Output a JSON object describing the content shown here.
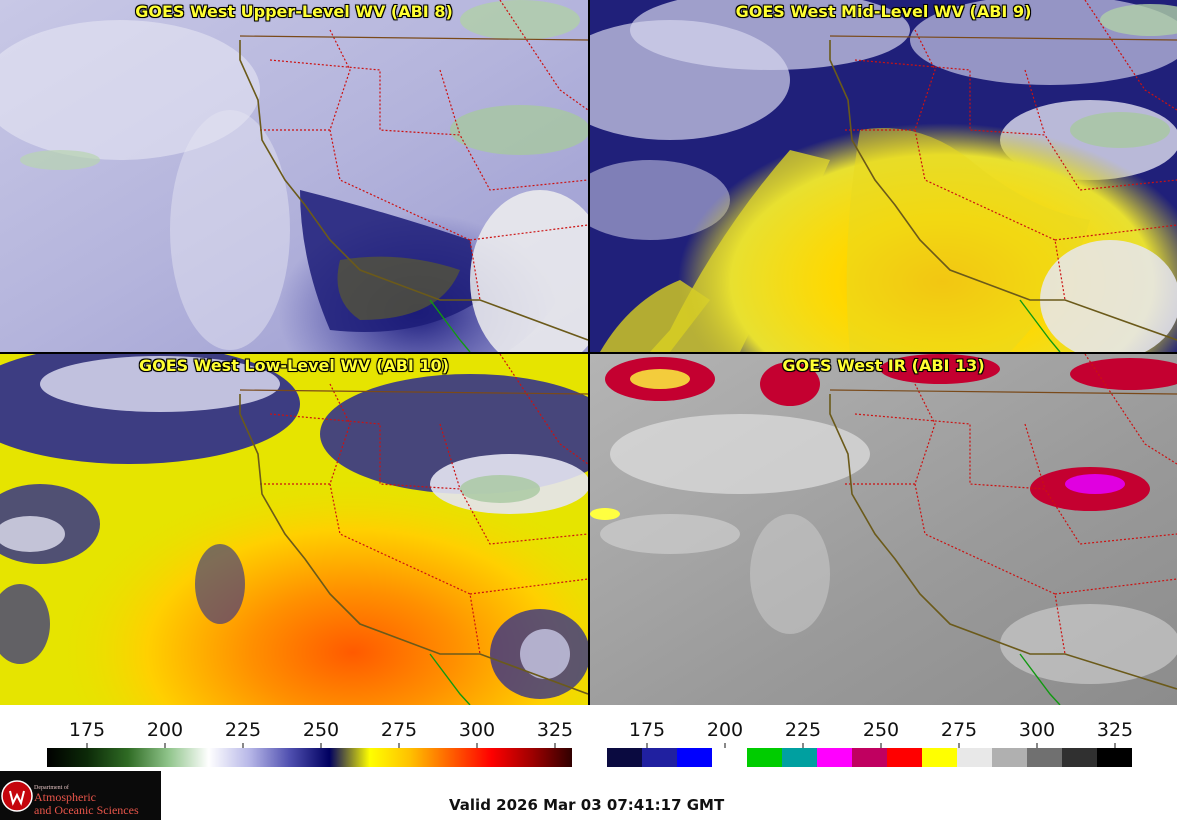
{
  "panels": [
    {
      "title": "GOES West Upper-Level WV (ABI 8)"
    },
    {
      "title": "GOES West Mid-Level WV (ABI 9)"
    },
    {
      "title": "GOES West Low-Level WV (ABI 10)"
    },
    {
      "title": "GOES West IR (ABI 13)"
    }
  ],
  "colorbars": [
    {
      "ticks": [
        "175",
        "200",
        "225",
        "250",
        "275",
        "300",
        "325"
      ],
      "stops": [
        "#000000",
        "#0c2a08",
        "#2f6b24",
        "#8fc48a",
        "#ffffff",
        "#b8b8e8",
        "#5050b0",
        "#000060",
        "#ffff00",
        "#ffc000",
        "#ff6000",
        "#ff0000",
        "#a00000",
        "#300000"
      ]
    },
    {
      "ticks": [
        "175",
        "200",
        "225",
        "250",
        "275",
        "300",
        "325"
      ],
      "segments": [
        "#0a0a40",
        "#2020a0",
        "#0000ff",
        "#ffffff",
        "#00cc00",
        "#00a0a0",
        "#ff00ff",
        "#c00060",
        "#ff0000",
        "#ffff00",
        "#e8e8e8",
        "#b0b0b0",
        "#707070",
        "#303030",
        "#000000"
      ]
    }
  ],
  "logo": {
    "line1": "Department of",
    "line2": "Atmospheric",
    "line3": "and Oceanic Sciences"
  },
  "valid_time": "Valid 2026 Mar 03 07:41:17 GMT",
  "colors": {
    "border": "#cc1111",
    "coast": "#6b5a1a",
    "mexico_border": "#119911",
    "title": "#ffff33"
  }
}
